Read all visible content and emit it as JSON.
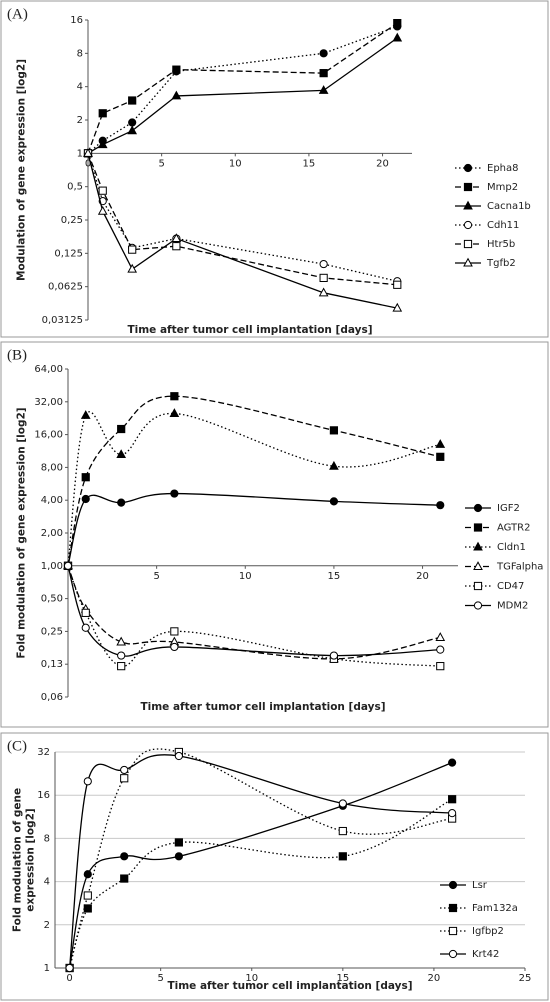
{
  "chart_data": [
    {
      "type": "line",
      "panel_label": "(A)",
      "ylabel": [
        "Modulation of gene expression [log2]"
      ],
      "xlabel": "Time after tumor cell implantation [days]",
      "x": [
        0,
        1,
        3,
        6,
        16,
        21
      ],
      "xlim": [
        0,
        22
      ],
      "xticks": [
        0,
        5,
        10,
        15,
        20
      ],
      "log_y": true,
      "ylim": [
        0.03125,
        16
      ],
      "yticks": [
        {
          "value": 0.03125,
          "label": "0,03125"
        },
        {
          "value": 0.0625,
          "label": "0,0625"
        },
        {
          "value": 0.125,
          "label": "0,125"
        },
        {
          "value": 0.25,
          "label": "0,25"
        },
        {
          "value": 0.5,
          "label": "0,5"
        },
        1,
        2,
        4,
        8,
        16
      ],
      "x_axis_at": 1,
      "grid": false,
      "smooth": false,
      "legend": "right",
      "series": [
        {
          "name": "Epha8",
          "color": "#000000",
          "marker": "circle",
          "filled": true,
          "dash": "dotted",
          "values": [
            1,
            1.3,
            1.9,
            5.5,
            8,
            14
          ]
        },
        {
          "name": "Mmp2",
          "color": "#000000",
          "marker": "square",
          "filled": true,
          "dash": "dashed",
          "values": [
            1,
            2.3,
            3,
            5.7,
            5.3,
            15
          ]
        },
        {
          "name": "Cacna1b",
          "color": "#000000",
          "marker": "triangle",
          "filled": true,
          "dash": "solid",
          "values": [
            1,
            1.2,
            1.6,
            3.3,
            3.7,
            11
          ]
        },
        {
          "name": "Cdh11",
          "color": "#000000",
          "marker": "circle",
          "filled": false,
          "dash": "dotted",
          "values": [
            1,
            0.37,
            0.14,
            0.17,
            0.1,
            0.07
          ]
        },
        {
          "name": "Htr5b",
          "color": "#000000",
          "marker": "square",
          "filled": false,
          "dash": "dashed",
          "values": [
            1,
            0.46,
            0.135,
            0.145,
            0.075,
            0.065
          ]
        },
        {
          "name": "Tgfb2",
          "color": "#000000",
          "marker": "triangle",
          "filled": false,
          "dash": "solid",
          "values": [
            1,
            0.3,
            0.09,
            0.17,
            0.055,
            0.04
          ]
        }
      ]
    },
    {
      "type": "line",
      "panel_label": "(B)",
      "ylabel": [
        "Fold modulation of gene expression [log2]"
      ],
      "xlabel": "Time after tumor cell implantation [days]",
      "x": [
        0,
        1,
        3,
        6,
        15,
        21
      ],
      "xlim": [
        0,
        22
      ],
      "xticks": [
        5,
        10,
        15,
        20
      ],
      "log_y": true,
      "ylim": [
        0.0625,
        64
      ],
      "yticks": [
        {
          "value": 0.0625,
          "label": "0,06"
        },
        {
          "value": 0.125,
          "label": "0,13"
        },
        {
          "value": 0.25,
          "label": "0,25"
        },
        {
          "value": 0.5,
          "label": "0,50"
        },
        {
          "value": 1,
          "label": "1,00"
        },
        {
          "value": 2,
          "label": "2,00"
        },
        {
          "value": 4,
          "label": "4,00"
        },
        {
          "value": 8,
          "label": "8,00"
        },
        {
          "value": 16,
          "label": "16,00"
        },
        {
          "value": 32,
          "label": "32,00"
        },
        {
          "value": 64,
          "label": "64,00"
        }
      ],
      "x_axis_at": 1,
      "grid": false,
      "smooth": true,
      "legend": "right",
      "series": [
        {
          "name": "IGF2",
          "color": "#000000",
          "marker": "circle",
          "filled": true,
          "dash": "solid",
          "values": [
            1,
            4.1,
            3.8,
            4.6,
            3.9,
            3.6
          ]
        },
        {
          "name": "AGTR2",
          "color": "#000000",
          "marker": "square",
          "filled": true,
          "dash": "dashed",
          "values": [
            1,
            6.5,
            18,
            36,
            17.5,
            10
          ]
        },
        {
          "name": "Cldn1",
          "color": "#000000",
          "marker": "triangle",
          "filled": true,
          "dash": "dotted",
          "values": [
            1,
            24,
            10.5,
            25,
            8.2,
            13
          ]
        },
        {
          "name": "TGFalpha",
          "color": "#000000",
          "marker": "triangle",
          "filled": false,
          "dash": "dashed",
          "values": [
            1,
            0.4,
            0.2,
            0.2,
            0.14,
            0.22
          ]
        },
        {
          "name": "CD47",
          "color": "#000000",
          "marker": "square",
          "filled": false,
          "dash": "dotted",
          "values": [
            1,
            0.37,
            0.12,
            0.25,
            0.14,
            0.12
          ]
        },
        {
          "name": "MDM2",
          "color": "#000000",
          "marker": "circle",
          "filled": false,
          "dash": "solid",
          "values": [
            1,
            0.27,
            0.15,
            0.18,
            0.15,
            0.17
          ]
        }
      ]
    },
    {
      "type": "line",
      "panel_label": "(C)",
      "ylabel": [
        "Fold modulation of gene",
        "expression [log2]"
      ],
      "xlabel": "Time after tumor cell implantation [days]",
      "x": [
        0,
        1,
        3,
        6,
        15,
        21
      ],
      "xlim": [
        -0.8,
        25
      ],
      "xticks": [
        0,
        5,
        10,
        15,
        20,
        25
      ],
      "log_y": true,
      "ylim": [
        1,
        32
      ],
      "yticks": [
        1,
        2,
        4,
        8,
        16,
        32
      ],
      "grid": true,
      "smooth": true,
      "legend": "lower right",
      "series": [
        {
          "name": "Lsr",
          "color": "#000000",
          "marker": "circle",
          "filled": true,
          "dash": "solid",
          "values": [
            1,
            4.5,
            6,
            6,
            13.5,
            27
          ]
        },
        {
          "name": "Fam132a",
          "color": "#000000",
          "marker": "square",
          "filled": true,
          "dash": "dotted",
          "values": [
            1,
            2.6,
            4.2,
            7.5,
            6,
            15
          ]
        },
        {
          "name": "Igfbp2",
          "color": "#000000",
          "marker": "square",
          "filled": false,
          "dash": "dotted",
          "values": [
            1,
            3.2,
            21,
            32,
            9,
            11
          ]
        },
        {
          "name": "Krt42",
          "color": "#000000",
          "marker": "circle",
          "filled": false,
          "dash": "solid",
          "values": [
            1,
            20,
            24,
            30,
            14,
            12
          ]
        }
      ]
    }
  ]
}
